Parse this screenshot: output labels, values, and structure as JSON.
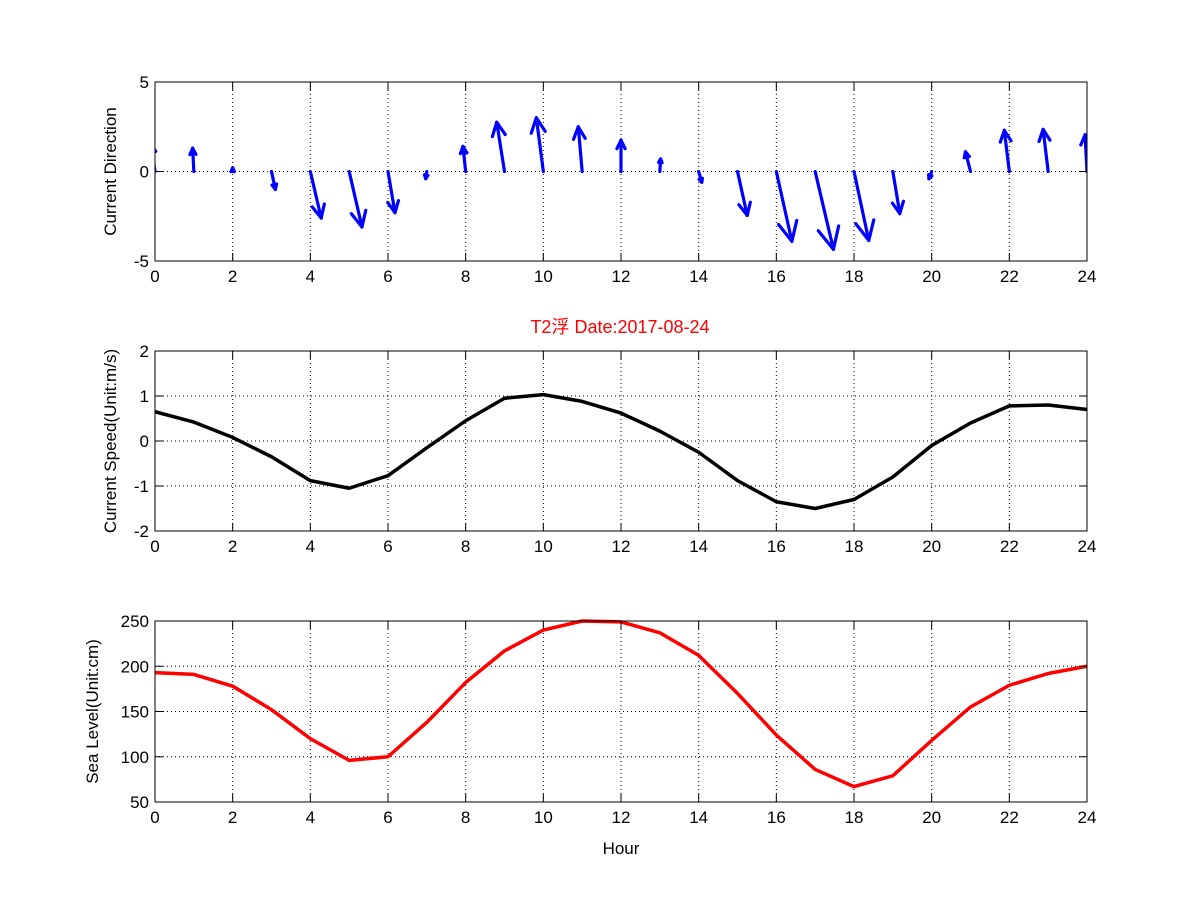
{
  "title": "T2浮   Date:2017-08-24",
  "colors": {
    "quiver": "#0000ff",
    "speed": "#000000",
    "sea_level": "#ff0000",
    "title": "#ff0000"
  },
  "chart_data": [
    {
      "type": "quiver",
      "ylabel": "Current Direction",
      "xlabel": "",
      "xlim": [
        0,
        24
      ],
      "ylim": [
        -5,
        5
      ],
      "xticks": [
        0,
        2,
        4,
        6,
        8,
        10,
        12,
        14,
        16,
        18,
        20,
        22,
        24
      ],
      "yticks": [
        -5,
        0,
        5
      ],
      "grid": true,
      "x": [
        0,
        1,
        2,
        3,
        4,
        5,
        6,
        7,
        8,
        9,
        10,
        11,
        12,
        13,
        14,
        15,
        16,
        17,
        18,
        19,
        20,
        21,
        22,
        23,
        24
      ],
      "u": [
        -0.1,
        -0.03,
        0,
        0.1,
        0.28,
        0.33,
        0.18,
        -0.03,
        -0.07,
        -0.2,
        -0.18,
        -0.1,
        0,
        0.02,
        0.08,
        0.25,
        0.4,
        0.47,
        0.38,
        0.18,
        -0.07,
        -0.13,
        -0.13,
        -0.13,
        -0.05
      ],
      "v": [
        1.5,
        1.3,
        0.2,
        -1.0,
        -2.6,
        -3.1,
        -2.3,
        -0.4,
        1.4,
        2.75,
        3.0,
        2.5,
        1.75,
        0.7,
        -0.6,
        -2.45,
        -3.9,
        -4.35,
        -3.85,
        -2.35,
        -0.4,
        1.1,
        2.3,
        2.35,
        2.05
      ]
    },
    {
      "type": "line",
      "title": "T2浮   Date:2017-08-24",
      "ylabel": "Current Speed(Unit:m/s)",
      "xlabel": "",
      "xlim": [
        0,
        24
      ],
      "ylim": [
        -2,
        2
      ],
      "xticks": [
        0,
        2,
        4,
        6,
        8,
        10,
        12,
        14,
        16,
        18,
        20,
        22,
        24
      ],
      "yticks": [
        -2,
        -1,
        0,
        1,
        2
      ],
      "grid": true,
      "x": [
        0,
        1,
        2,
        3,
        4,
        5,
        6,
        7,
        8,
        9,
        10,
        11,
        12,
        13,
        14,
        15,
        16,
        17,
        18,
        19,
        20,
        21,
        22,
        23,
        24
      ],
      "values": [
        0.65,
        0.42,
        0.08,
        -0.35,
        -0.88,
        -1.05,
        -0.77,
        -0.15,
        0.45,
        0.95,
        1.03,
        0.88,
        0.62,
        0.22,
        -0.25,
        -0.88,
        -1.35,
        -1.5,
        -1.3,
        -0.8,
        -0.1,
        0.4,
        0.78,
        0.8,
        0.7
      ]
    },
    {
      "type": "line",
      "ylabel": "Sea Level(Unit:cm)",
      "xlabel": "Hour",
      "xlim": [
        0,
        24
      ],
      "ylim": [
        50,
        250
      ],
      "xticks": [
        0,
        2,
        4,
        6,
        8,
        10,
        12,
        14,
        16,
        18,
        20,
        22,
        24
      ],
      "yticks": [
        50,
        100,
        150,
        200,
        250
      ],
      "grid": true,
      "x": [
        0,
        1,
        2,
        3,
        4,
        5,
        6,
        7,
        8,
        9,
        10,
        11,
        12,
        13,
        14,
        15,
        16,
        17,
        18,
        19,
        20,
        21,
        22,
        23,
        24
      ],
      "values": [
        193,
        191,
        178,
        152,
        120,
        96,
        100,
        138,
        182,
        217,
        240,
        250,
        249,
        237,
        212,
        170,
        124,
        86,
        67,
        79,
        118,
        155,
        179,
        192,
        200
      ]
    }
  ]
}
